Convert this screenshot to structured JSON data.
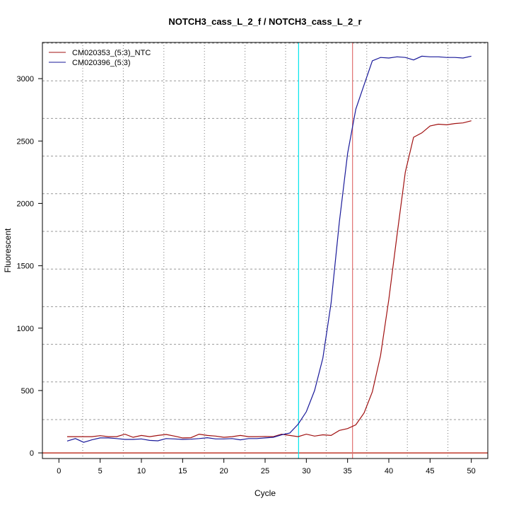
{
  "chart_data": {
    "type": "line",
    "title": "NOTCH3_cass_L_2_f / NOTCH3_cass_L_2_r",
    "xlabel": "Cycle",
    "ylabel": "Fluorescent",
    "xlim": [
      -2,
      52
    ],
    "ylim": [
      -45,
      3290
    ],
    "x_ticks": [
      0,
      5,
      10,
      15,
      20,
      25,
      30,
      35,
      40,
      45,
      50
    ],
    "y_ticks": [
      0,
      500,
      1000,
      1500,
      2000,
      2500,
      3000
    ],
    "grid": true,
    "legend": "top-left",
    "x": [
      1,
      2,
      3,
      4,
      5,
      6,
      7,
      8,
      9,
      10,
      11,
      12,
      13,
      14,
      15,
      16,
      17,
      18,
      19,
      20,
      21,
      22,
      23,
      24,
      25,
      26,
      27,
      28,
      29,
      30,
      31,
      32,
      33,
      34,
      35,
      36,
      37,
      38,
      39,
      40,
      41,
      42,
      43,
      44,
      45,
      46,
      47,
      48,
      49,
      50
    ],
    "series": [
      {
        "name": "CM020353_(5:3)_NTC",
        "color": "#a01010",
        "values": [
          130,
          130,
          130,
          130,
          138,
          130,
          130,
          150,
          125,
          140,
          130,
          140,
          148,
          135,
          120,
          122,
          150,
          140,
          135,
          125,
          130,
          140,
          130,
          130,
          132,
          130,
          150,
          140,
          130,
          150,
          135,
          145,
          140,
          180,
          195,
          225,
          320,
          490,
          780,
          1230,
          1750,
          2250,
          2530,
          2565,
          2620,
          2635,
          2630,
          2640,
          2645,
          2662
        ]
      },
      {
        "name": "CM020396_(5:3)",
        "color": "#1a1a9a",
        "values": [
          95,
          115,
          85,
          105,
          120,
          120,
          115,
          108,
          108,
          112,
          100,
          97,
          115,
          112,
          108,
          110,
          115,
          122,
          112,
          112,
          115,
          105,
          115,
          115,
          120,
          125,
          145,
          160,
          230,
          330,
          500,
          760,
          1200,
          1850,
          2400,
          2755,
          2950,
          3143,
          3170,
          3165,
          3175,
          3170,
          3150,
          3180,
          3175,
          3175,
          3170,
          3170,
          3165,
          3180
        ]
      }
    ],
    "annotations": {
      "threshold_value": 0,
      "threshold_color": "#c0392b",
      "cycle_markers": [
        {
          "x": 29.06,
          "color": "#00e5ee"
        },
        {
          "x": 35.6,
          "color": "#e07070"
        }
      ]
    }
  }
}
